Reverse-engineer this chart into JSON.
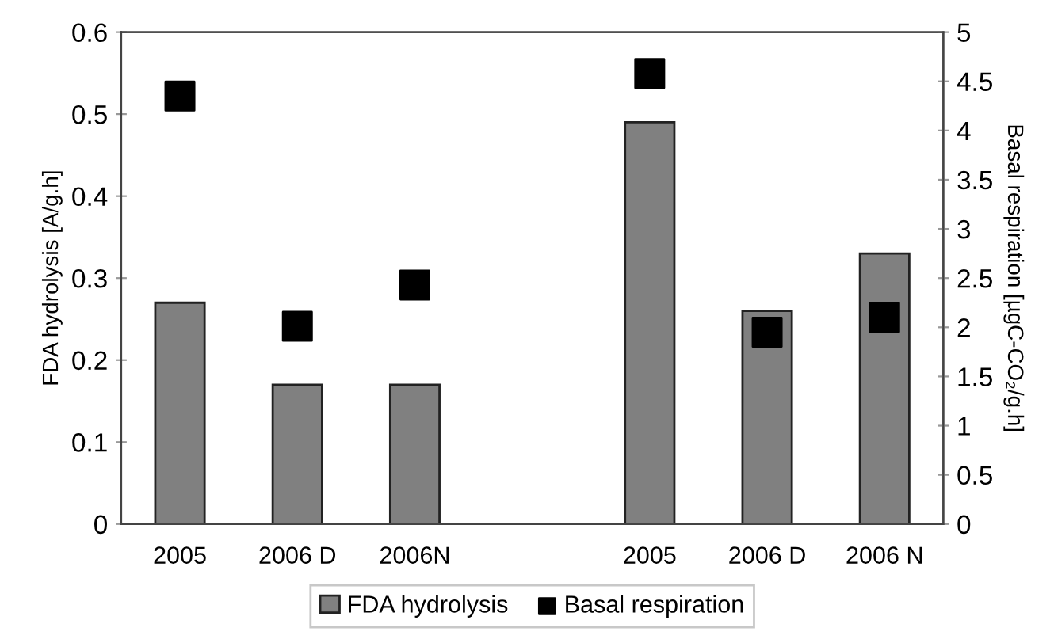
{
  "chart_data": {
    "type": "bar",
    "categories": [
      "2005",
      "2006 D",
      "2006N",
      null,
      "2005",
      "2006 D",
      "2006 N"
    ],
    "ylabel": "FDA hydrolysis [A/g.h]",
    "y2label": "Basal respiration [µgC-CO₂/g.h]",
    "series": [
      {
        "name": "FDA hydrolysis",
        "color": "#808080",
        "values": [
          0.27,
          0.17,
          0.17,
          null,
          0.49,
          0.26,
          0.33
        ]
      },
      {
        "name": "Basal respiration",
        "type": "scatter",
        "axis": "y2",
        "color": "#000000",
        "marker": "square",
        "values": [
          4.35,
          2.01,
          2.43,
          null,
          4.58,
          1.95,
          2.1
        ]
      }
    ],
    "ylim": [
      0,
      0.6
    ],
    "yticks": [
      0,
      0.1,
      0.2,
      0.3,
      0.4,
      0.5,
      0.6
    ],
    "y2lim": [
      0,
      5
    ],
    "y2ticks": [
      0,
      0.5,
      1,
      1.5,
      2,
      2.5,
      3,
      3.5,
      4,
      4.5,
      5
    ],
    "legend": "bottom",
    "grid": false
  }
}
